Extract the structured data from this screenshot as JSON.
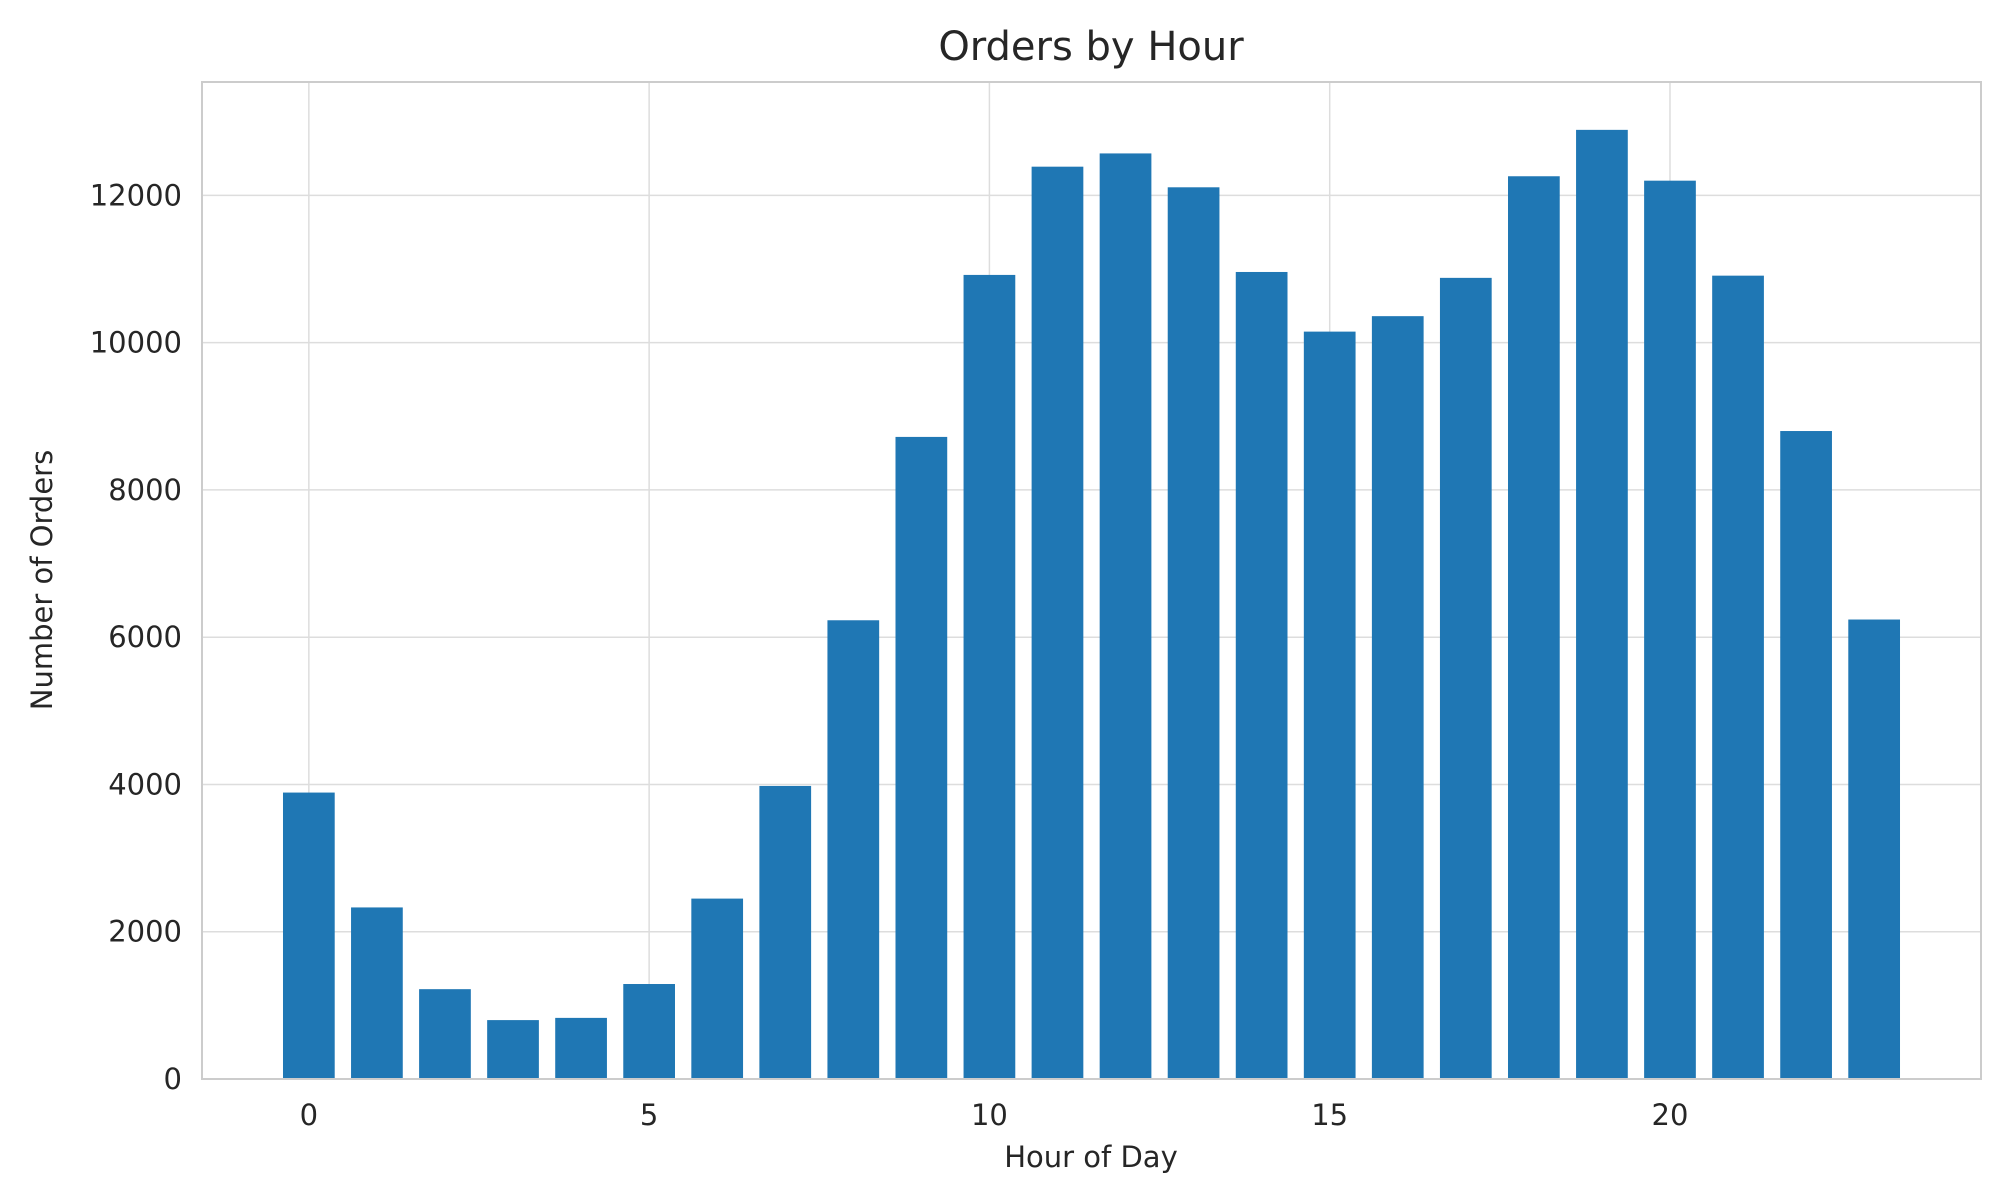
{
  "chart_data": {
    "type": "bar",
    "title": "Orders by Hour",
    "xlabel": "Hour of Day",
    "ylabel": "Number of Orders",
    "x": [
      0,
      1,
      2,
      3,
      4,
      5,
      6,
      7,
      8,
      9,
      10,
      11,
      12,
      13,
      14,
      15,
      16,
      17,
      18,
      19,
      20,
      21,
      22,
      23
    ],
    "values": [
      3890,
      2330,
      1220,
      800,
      830,
      1290,
      2450,
      3980,
      6230,
      8720,
      10920,
      12390,
      12570,
      12110,
      10960,
      10150,
      10360,
      10880,
      12260,
      12890,
      12200,
      10910,
      8800,
      6240
    ],
    "xlim": [
      -1.57,
      24.57
    ],
    "ylim": [
      0,
      13540
    ],
    "xticks": [
      0,
      5,
      10,
      15,
      20
    ],
    "yticks": [
      0,
      2000,
      4000,
      6000,
      8000,
      10000,
      12000
    ],
    "grid": true,
    "bar_color": "#1f77b4",
    "grid_color": "#dddddd",
    "spine_color": "#cccccc"
  }
}
